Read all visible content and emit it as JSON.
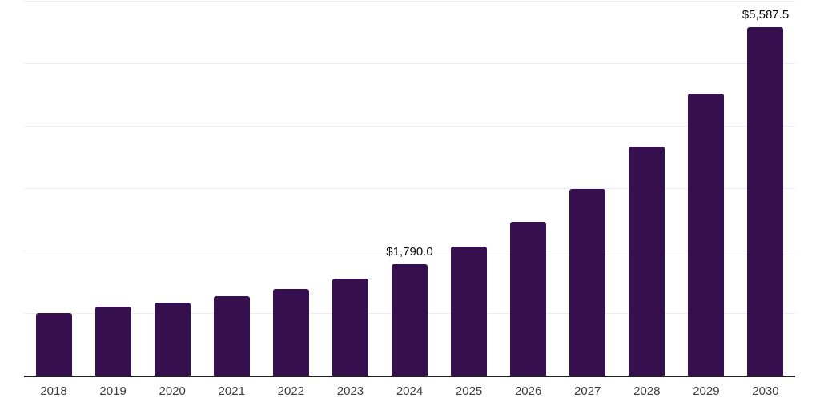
{
  "chart_data": {
    "type": "bar",
    "categories": [
      "2018",
      "2019",
      "2020",
      "2021",
      "2022",
      "2023",
      "2024",
      "2025",
      "2026",
      "2027",
      "2028",
      "2029",
      "2030"
    ],
    "values": [
      1015,
      1112,
      1175,
      1285,
      1400,
      1570,
      1790,
      2080,
      2480,
      3005,
      3675,
      4525,
      5587.5
    ],
    "data_labels": {
      "2024": "$1,790.0",
      "2030": "$5,587.5"
    },
    "ylim": [
      0,
      6000
    ],
    "gridline_step": 1000,
    "grid": true,
    "legend": "none",
    "xlabel": "",
    "ylabel": "",
    "y_tick_labels_visible": false,
    "colors": {
      "bar": "#36104E",
      "gridline": "#EDEDED",
      "axis_line": "#1F1F1F",
      "tick_label": "#3D3D3D",
      "data_label": "#0A0A0A",
      "background": "#FFFFFF"
    }
  }
}
